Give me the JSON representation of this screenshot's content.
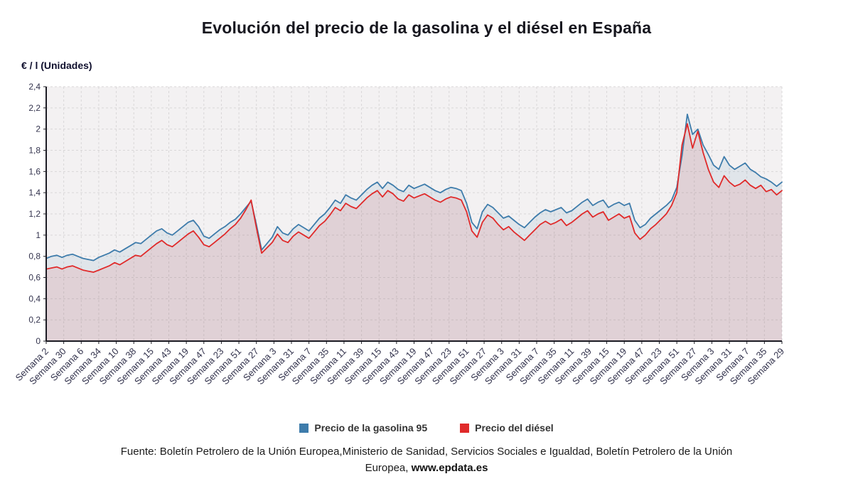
{
  "title": "Evolución del precio de la gasolina y el diésel en España",
  "y_axis_unit_label": "€ / l (Unidades)",
  "source": {
    "line1": "Fuente: Boletín Petrolero de la Unión Europea,Ministerio de Sanidad, Servicios Sociales e Igualdad, Boletín Petrolero de la Unión",
    "line2_prefix": "Europea, ",
    "link": "www.epdata.es"
  },
  "legend": [
    {
      "label": "Precio de la gasolina 95",
      "color": "#3e7cab"
    },
    {
      "label": "Precio del diésel",
      "color": "#e02a2a"
    }
  ],
  "colors": {
    "plot_bg": "#f3f1f2",
    "grid": "#d9d7d8",
    "axis": "#1c1c24",
    "tick_text": "#33334d",
    "title_text": "#16161e"
  },
  "chart_data": {
    "type": "line",
    "title": "Evolución del precio de la gasolina y el diésel en España",
    "xlabel": "",
    "ylabel": "€ / l (Unidades)",
    "ylim": [
      0,
      2.4
    ],
    "grid": true,
    "legend_position": "bottom",
    "y_ticks": [
      "0",
      "0,2",
      "0,4",
      "0,6",
      "0,8",
      "1",
      "1,2",
      "1,4",
      "1,6",
      "1,8",
      "2",
      "2,2",
      "2,4"
    ],
    "x_tick_labels": [
      "Semana 2",
      "Semana 30",
      "Semana 6",
      "Semana 34",
      "Semana 10",
      "Semana 38",
      "Semana 15",
      "Semana 43",
      "Semana 19",
      "Semana 47",
      "Semana 23",
      "Semana 51",
      "Semana 27",
      "Semana 3",
      "Semana 31",
      "Semana 7",
      "Semana 35",
      "Semana 11",
      "Semana 39",
      "Semana 15",
      "Semana 43",
      "Semana 19",
      "Semana 47",
      "Semana 23",
      "Semana 51",
      "Semana 27",
      "Semana 3",
      "Semana 31",
      "Semana 7",
      "Semana 35",
      "Semana 11",
      "Semana 39",
      "Semana 15",
      "Semana 19",
      "Semana 47",
      "Semana 23",
      "Semana 51",
      "Semana 27",
      "Semana 3",
      "Semana 31",
      "Semana 7",
      "Semana 35",
      "Semana 29"
    ],
    "series": [
      {
        "name": "Precio de la gasolina 95",
        "color": "#3e7cab",
        "fill": "rgba(62,124,171,0.10)",
        "values": [
          0.78,
          0.8,
          0.81,
          0.79,
          0.81,
          0.82,
          0.8,
          0.78,
          0.77,
          0.76,
          0.79,
          0.81,
          0.83,
          0.86,
          0.84,
          0.87,
          0.9,
          0.93,
          0.92,
          0.96,
          1.0,
          1.04,
          1.06,
          1.02,
          1.0,
          1.04,
          1.08,
          1.12,
          1.14,
          1.08,
          0.99,
          0.97,
          1.01,
          1.05,
          1.08,
          1.12,
          1.15,
          1.2,
          1.26,
          1.32,
          1.1,
          0.86,
          0.92,
          0.98,
          1.08,
          1.02,
          1.0,
          1.06,
          1.1,
          1.07,
          1.04,
          1.1,
          1.16,
          1.2,
          1.26,
          1.33,
          1.3,
          1.38,
          1.35,
          1.33,
          1.38,
          1.43,
          1.47,
          1.5,
          1.44,
          1.5,
          1.47,
          1.43,
          1.41,
          1.47,
          1.44,
          1.46,
          1.48,
          1.45,
          1.42,
          1.4,
          1.43,
          1.45,
          1.44,
          1.42,
          1.3,
          1.12,
          1.06,
          1.22,
          1.29,
          1.26,
          1.21,
          1.16,
          1.18,
          1.14,
          1.1,
          1.07,
          1.12,
          1.17,
          1.21,
          1.24,
          1.22,
          1.24,
          1.26,
          1.21,
          1.23,
          1.27,
          1.31,
          1.34,
          1.28,
          1.31,
          1.33,
          1.26,
          1.29,
          1.31,
          1.28,
          1.3,
          1.14,
          1.07,
          1.1,
          1.16,
          1.2,
          1.24,
          1.28,
          1.33,
          1.45,
          1.75,
          2.14,
          1.95,
          2.0,
          1.85,
          1.76,
          1.66,
          1.62,
          1.74,
          1.66,
          1.62,
          1.65,
          1.68,
          1.62,
          1.59,
          1.55,
          1.53,
          1.5,
          1.46,
          1.5
        ]
      },
      {
        "name": "Precio del diésel",
        "color": "#e02a2a",
        "fill": "rgba(224,42,42,0.10)",
        "values": [
          0.68,
          0.69,
          0.7,
          0.68,
          0.7,
          0.71,
          0.69,
          0.67,
          0.66,
          0.65,
          0.67,
          0.69,
          0.71,
          0.74,
          0.72,
          0.75,
          0.78,
          0.81,
          0.8,
          0.84,
          0.88,
          0.92,
          0.95,
          0.91,
          0.89,
          0.93,
          0.97,
          1.01,
          1.04,
          0.98,
          0.91,
          0.89,
          0.93,
          0.97,
          1.01,
          1.06,
          1.1,
          1.16,
          1.24,
          1.33,
          1.07,
          0.83,
          0.88,
          0.93,
          1.01,
          0.95,
          0.93,
          0.99,
          1.03,
          1.0,
          0.97,
          1.03,
          1.09,
          1.13,
          1.19,
          1.26,
          1.23,
          1.3,
          1.27,
          1.25,
          1.3,
          1.35,
          1.39,
          1.42,
          1.36,
          1.42,
          1.39,
          1.34,
          1.32,
          1.38,
          1.35,
          1.37,
          1.39,
          1.36,
          1.33,
          1.31,
          1.34,
          1.36,
          1.35,
          1.33,
          1.22,
          1.04,
          0.98,
          1.12,
          1.19,
          1.16,
          1.1,
          1.05,
          1.08,
          1.03,
          0.99,
          0.95,
          1.0,
          1.05,
          1.1,
          1.13,
          1.1,
          1.12,
          1.15,
          1.09,
          1.12,
          1.16,
          1.2,
          1.23,
          1.17,
          1.2,
          1.22,
          1.14,
          1.17,
          1.2,
          1.16,
          1.18,
          1.02,
          0.96,
          1.0,
          1.06,
          1.1,
          1.15,
          1.2,
          1.28,
          1.4,
          1.85,
          2.05,
          1.82,
          1.98,
          1.78,
          1.62,
          1.5,
          1.45,
          1.56,
          1.5,
          1.46,
          1.48,
          1.52,
          1.47,
          1.44,
          1.47,
          1.41,
          1.43,
          1.38,
          1.42
        ]
      }
    ]
  }
}
